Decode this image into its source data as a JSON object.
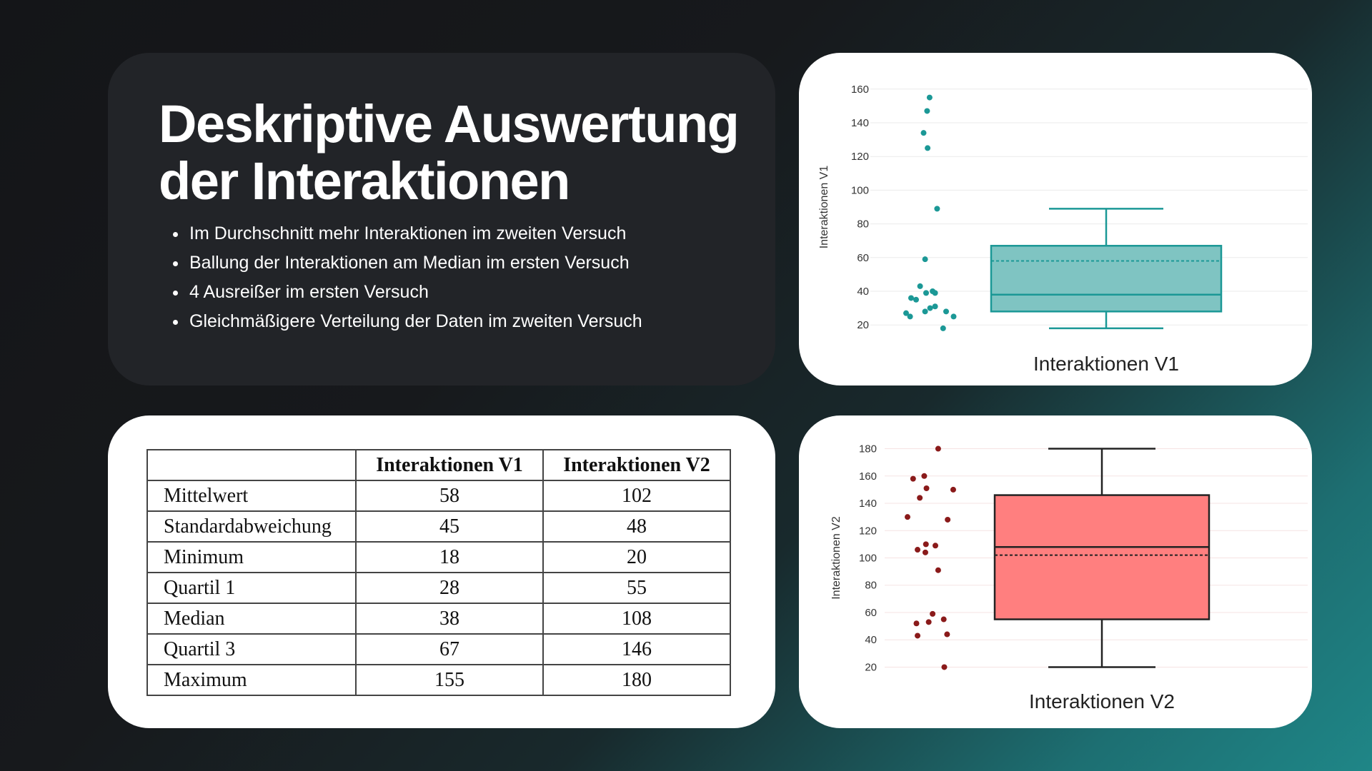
{
  "title": "Deskriptive Auswertung der Interaktionen",
  "bullets": [
    "Im Durchschnitt mehr Interaktionen im zweiten Versuch",
    "Ballung der Interaktionen am Median im ersten Versuch",
    "4 Ausreißer im ersten Versuch",
    "Gleichmäßigere Verteilung der Daten im zweiten Versuch"
  ],
  "table": {
    "headers": [
      "",
      "Interaktionen V1",
      "Interaktionen V2"
    ],
    "rows": [
      [
        "Mittelwert",
        "58",
        "102"
      ],
      [
        "Standardabweichung",
        "45",
        "48"
      ],
      [
        "Minimum",
        "18",
        "20"
      ],
      [
        "Quartil 1",
        "28",
        "55"
      ],
      [
        "Median",
        "38",
        "108"
      ],
      [
        "Quartil 3",
        "67",
        "146"
      ],
      [
        "Maximum",
        "155",
        "180"
      ]
    ]
  },
  "chart_data": [
    {
      "type": "box",
      "xlabel": "Interaktionen V1",
      "ylabel": "Interaktionen V1",
      "ylim": [
        15,
        165
      ],
      "yticks": [
        20,
        40,
        60,
        80,
        100,
        120,
        140,
        160
      ],
      "grid": true,
      "color": "#1b9896",
      "fill": "#7fc4c2",
      "box": {
        "whisker_low": 18,
        "q1": 28,
        "median": 38,
        "mean": 58,
        "q3": 67,
        "whisker_high": 89
      },
      "points": [
        {
          "x": 0.47,
          "y": 155
        },
        {
          "x": 0.42,
          "y": 147
        },
        {
          "x": 0.35,
          "y": 134
        },
        {
          "x": 0.43,
          "y": 125
        },
        {
          "x": 0.62,
          "y": 89
        },
        {
          "x": 0.38,
          "y": 59
        },
        {
          "x": 0.28,
          "y": 43
        },
        {
          "x": 0.1,
          "y": 36
        },
        {
          "x": 0.2,
          "y": 35
        },
        {
          "x": 0.4,
          "y": 39
        },
        {
          "x": 0.58,
          "y": 39
        },
        {
          "x": 0.53,
          "y": 40
        },
        {
          "x": 0.58,
          "y": 31
        },
        {
          "x": 0.48,
          "y": 30
        },
        {
          "x": 0.38,
          "y": 28
        },
        {
          "x": 0.0,
          "y": 27
        },
        {
          "x": 0.08,
          "y": 25
        },
        {
          "x": 0.8,
          "y": 28
        },
        {
          "x": 0.95,
          "y": 25
        },
        {
          "x": 0.74,
          "y": 18
        }
      ]
    },
    {
      "type": "box",
      "xlabel": "Interaktionen V2",
      "ylabel": "Interaktionen V2",
      "ylim": [
        15,
        185
      ],
      "yticks": [
        20,
        40,
        60,
        80,
        100,
        120,
        140,
        160,
        180
      ],
      "grid": true,
      "color": "#8a1a1a",
      "fill": "#ff7f7f",
      "stroke": "#222222",
      "box": {
        "whisker_low": 20,
        "q1": 55,
        "median": 108,
        "mean": 102,
        "q3": 146,
        "whisker_high": 180
      },
      "points": [
        {
          "x": 0.55,
          "y": 180
        },
        {
          "x": 0.3,
          "y": 160
        },
        {
          "x": 0.1,
          "y": 158
        },
        {
          "x": 0.34,
          "y": 151
        },
        {
          "x": 0.82,
          "y": 150
        },
        {
          "x": 0.22,
          "y": 144
        },
        {
          "x": 0.0,
          "y": 130
        },
        {
          "x": 0.72,
          "y": 128
        },
        {
          "x": 0.33,
          "y": 110
        },
        {
          "x": 0.5,
          "y": 109
        },
        {
          "x": 0.18,
          "y": 106
        },
        {
          "x": 0.32,
          "y": 104
        },
        {
          "x": 0.55,
          "y": 91
        },
        {
          "x": 0.45,
          "y": 59
        },
        {
          "x": 0.65,
          "y": 55
        },
        {
          "x": 0.38,
          "y": 53
        },
        {
          "x": 0.16,
          "y": 52
        },
        {
          "x": 0.18,
          "y": 43
        },
        {
          "x": 0.71,
          "y": 44
        },
        {
          "x": 0.66,
          "y": 20
        }
      ]
    }
  ]
}
